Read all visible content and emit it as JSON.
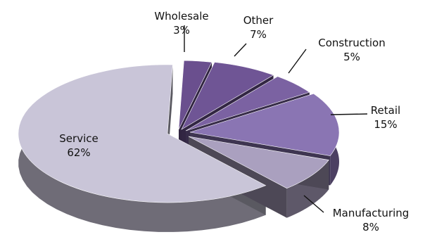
{
  "chart_data": {
    "type": "pie",
    "title": "",
    "style": "3d-exploded",
    "slices": [
      {
        "label": "Wholesale",
        "value": 3,
        "percent_label": "3%",
        "color": "#6a4f8e"
      },
      {
        "label": "Other",
        "value": 7,
        "percent_label": "7%",
        "color": "#6f5595"
      },
      {
        "label": "Construction",
        "value": 5,
        "percent_label": "5%",
        "color": "#7b62a2"
      },
      {
        "label": "Retail",
        "value": 15,
        "percent_label": "15%",
        "color": "#8a75b3"
      },
      {
        "label": "Manufacturing",
        "value": 8,
        "percent_label": "8%",
        "color": "#aaa0bf"
      },
      {
        "label": "Service",
        "value": 62,
        "percent_label": "62%",
        "color": "#c9c5d8"
      }
    ]
  }
}
